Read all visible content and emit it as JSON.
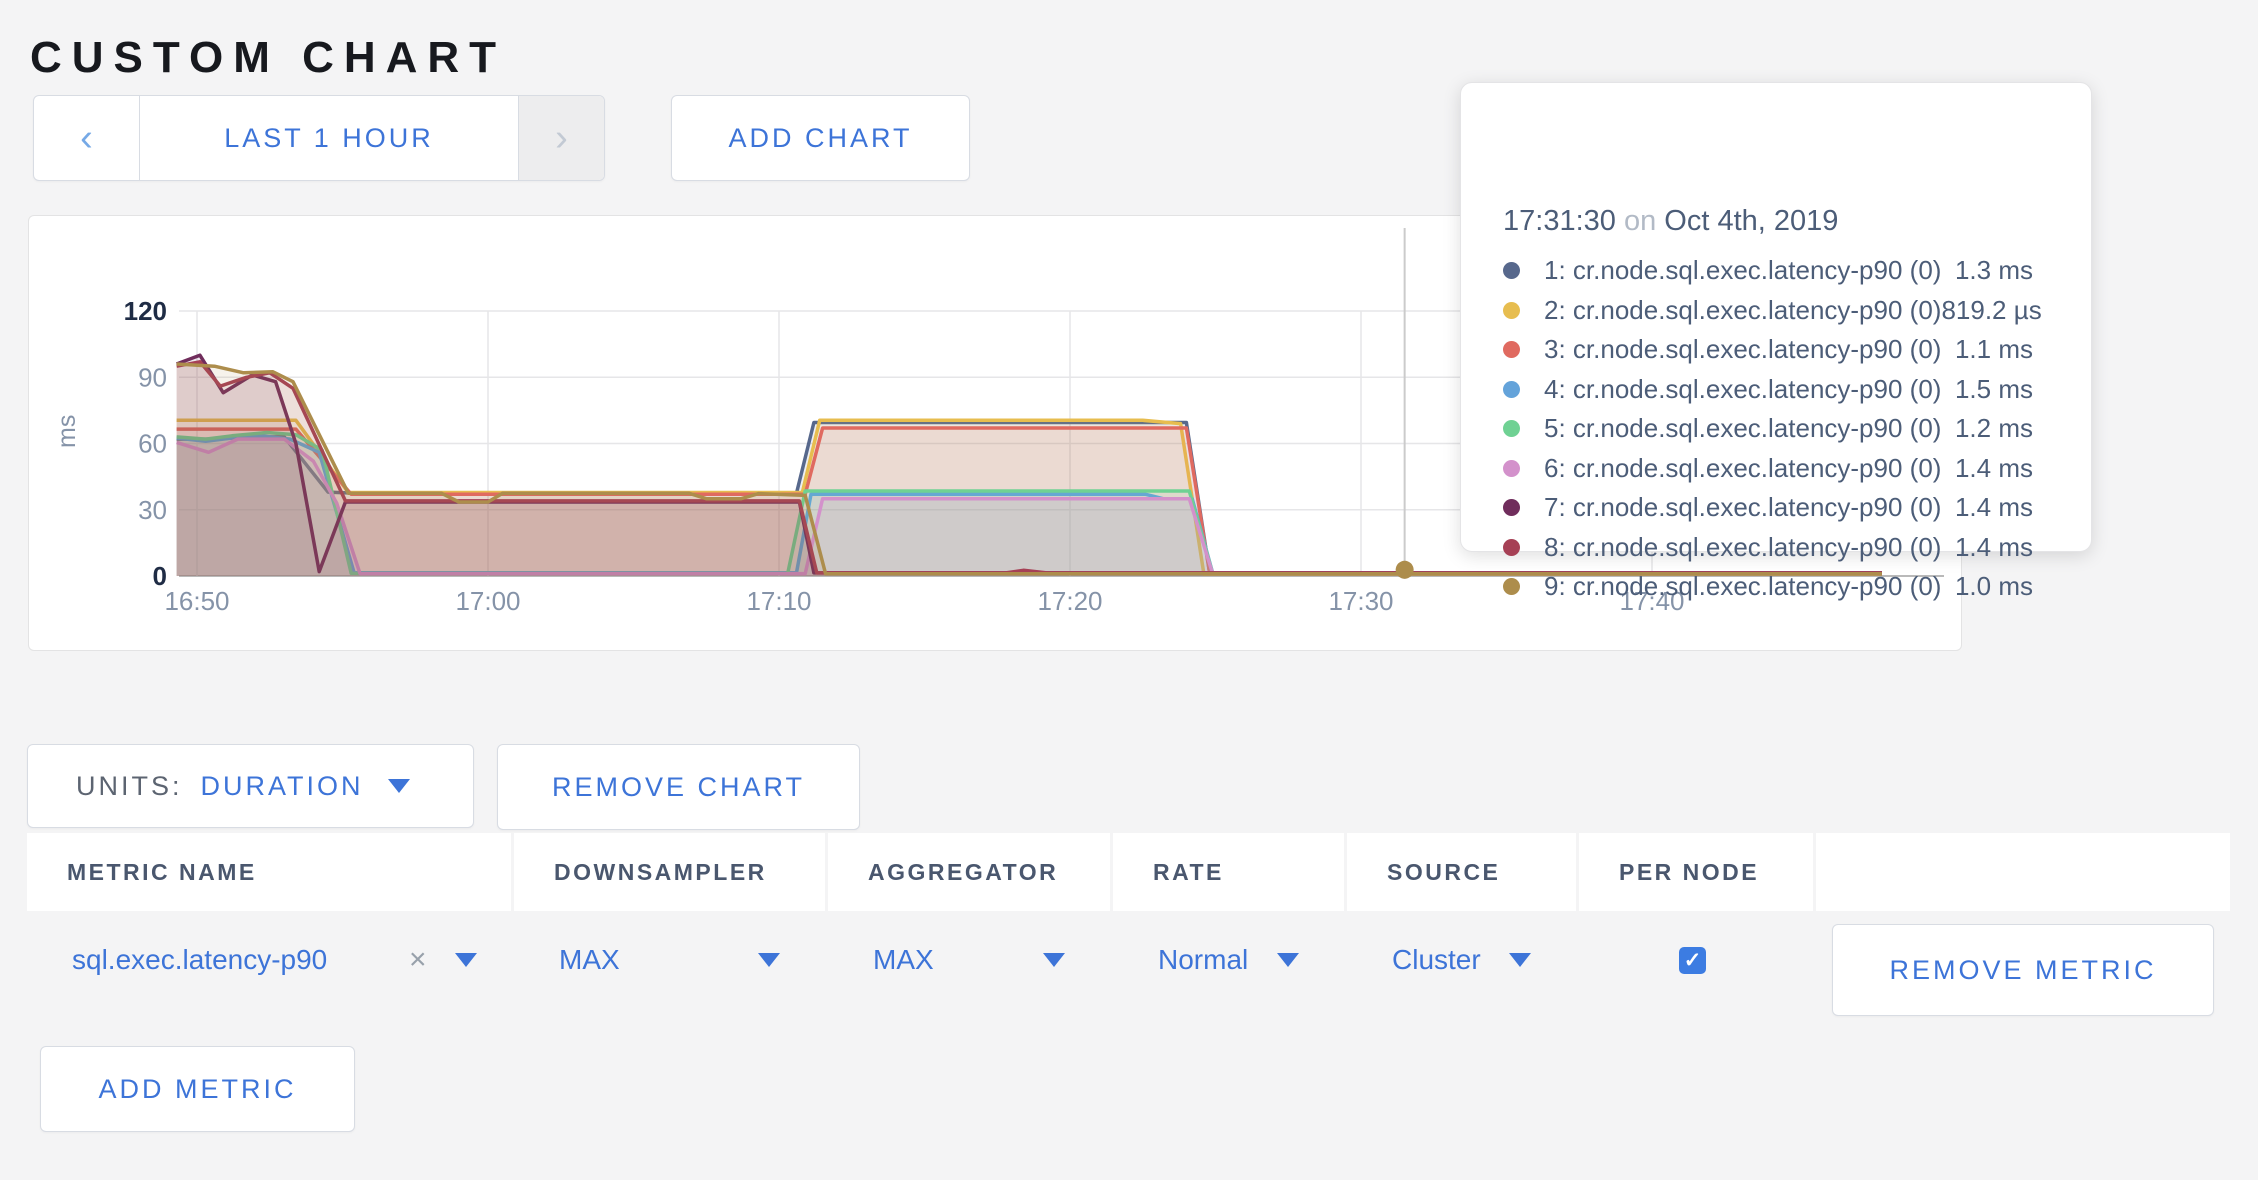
{
  "page": {
    "title": "CUSTOM CHART"
  },
  "toolbar": {
    "time_range": {
      "prev_icon": "‹",
      "label": "LAST 1 HOUR",
      "next_icon": "›"
    },
    "add_chart_label": "ADD CHART"
  },
  "tooltip": {
    "time": "17:31:30",
    "conjunction": "on",
    "date": "Oct 4th, 2019",
    "series": [
      {
        "label": "1: cr.node.sql.exec.latency-p90 (0)",
        "value": "1.3 ms"
      },
      {
        "label": "2: cr.node.sql.exec.latency-p90 (0)",
        "value": "819.2 µs"
      },
      {
        "label": "3: cr.node.sql.exec.latency-p90 (0)",
        "value": "1.1 ms"
      },
      {
        "label": "4: cr.node.sql.exec.latency-p90 (0)",
        "value": "1.5 ms"
      },
      {
        "label": "5: cr.node.sql.exec.latency-p90 (0)",
        "value": "1.2 ms"
      },
      {
        "label": "6: cr.node.sql.exec.latency-p90 (0)",
        "value": "1.4 ms"
      },
      {
        "label": "7: cr.node.sql.exec.latency-p90 (0)",
        "value": "1.4 ms"
      },
      {
        "label": "8: cr.node.sql.exec.latency-p90 (0)",
        "value": "1.4 ms"
      },
      {
        "label": "9: cr.node.sql.exec.latency-p90 (0)",
        "value": "1.0 ms"
      }
    ]
  },
  "chart_data": {
    "type": "area",
    "ylabel": "ms",
    "x_axis": {
      "ticks": [
        {
          "t": 50,
          "label": "16:50"
        },
        {
          "t": 60,
          "label": "17:00"
        },
        {
          "t": 70,
          "label": "17:10"
        },
        {
          "t": 80,
          "label": "17:20"
        },
        {
          "t": 90,
          "label": "17:30"
        },
        {
          "t": 100,
          "label": "17:40"
        }
      ]
    },
    "y_axis": {
      "ticks": [
        0,
        30,
        60,
        90,
        120
      ],
      "max": 120
    },
    "crosshair": {
      "t": 91.5,
      "value": 1.0,
      "series_index": 8
    },
    "series": [
      {
        "name": "1: cr.node.sql.exec.latency-p90 (0)",
        "color": "#57688c",
        "points": [
          [
            49.3,
            62
          ],
          [
            50.5,
            62
          ],
          [
            52,
            63
          ],
          [
            53,
            63
          ],
          [
            54.5,
            38
          ],
          [
            55.5,
            37.5
          ],
          [
            70.6,
            37.5
          ],
          [
            71.2,
            69.5
          ],
          [
            84.0,
            69.5
          ],
          [
            84.8,
            1.3
          ],
          [
            107.9,
            1.3
          ]
        ]
      },
      {
        "name": "2: cr.node.sql.exec.latency-p90 (0)",
        "color": "#e7bd4f",
        "points": [
          [
            49.3,
            70.5
          ],
          [
            53.4,
            70.5
          ],
          [
            55.2,
            37.8
          ],
          [
            70.8,
            37.8
          ],
          [
            71.4,
            70.5
          ],
          [
            82.5,
            70.5
          ],
          [
            83.8,
            69
          ],
          [
            84.6,
            0.82
          ],
          [
            107.9,
            0.82
          ]
        ]
      },
      {
        "name": "3: cr.node.sql.exec.latency-p90 (0)",
        "color": "#e06a60",
        "points": [
          [
            49.3,
            66.5
          ],
          [
            53.4,
            66.5
          ],
          [
            55.3,
            37
          ],
          [
            70.9,
            37
          ],
          [
            71.5,
            67
          ],
          [
            84.0,
            67
          ],
          [
            84.8,
            1.1
          ],
          [
            107.9,
            1.1
          ]
        ]
      },
      {
        "name": "4: cr.node.sql.exec.latency-p90 (0)",
        "color": "#64a3da",
        "points": [
          [
            49.3,
            62.5
          ],
          [
            50.3,
            61
          ],
          [
            51.2,
            62.5
          ],
          [
            52.2,
            63.5
          ],
          [
            53.2,
            62
          ],
          [
            54.2,
            56
          ],
          [
            55.4,
            1.5
          ],
          [
            70.6,
            1.5
          ],
          [
            71.1,
            37
          ],
          [
            82.6,
            37
          ],
          [
            83.2,
            35
          ],
          [
            84.2,
            35
          ],
          [
            84.9,
            1.5
          ],
          [
            107.9,
            1.5
          ]
        ]
      },
      {
        "name": "5: cr.node.sql.exec.latency-p90 (0)",
        "color": "#6fd193",
        "points": [
          [
            49.3,
            63
          ],
          [
            50.3,
            62
          ],
          [
            51.2,
            63.5
          ],
          [
            52.4,
            65
          ],
          [
            53.4,
            64
          ],
          [
            54.3,
            57
          ],
          [
            55.3,
            1.2
          ],
          [
            70.3,
            1.2
          ],
          [
            70.9,
            38.5
          ],
          [
            84.1,
            38.5
          ],
          [
            84.9,
            1.2
          ],
          [
            107.9,
            1.2
          ]
        ]
      },
      {
        "name": "6: cr.node.sql.exec.latency-p90 (0)",
        "color": "#d391cb",
        "points": [
          [
            49.3,
            60.5
          ],
          [
            50.4,
            56
          ],
          [
            51.4,
            62
          ],
          [
            53,
            62
          ],
          [
            54,
            52
          ],
          [
            54.8,
            33
          ],
          [
            55.6,
            1.1
          ],
          [
            70.9,
            1.1
          ],
          [
            71.5,
            35
          ],
          [
            84.1,
            35
          ],
          [
            84.9,
            1.2
          ],
          [
            107.9,
            1.2
          ]
        ]
      },
      {
        "name": "7: cr.node.sql.exec.latency-p90 (0)",
        "color": "#702d5c",
        "points": [
          [
            49.3,
            96
          ],
          [
            50.1,
            100
          ],
          [
            50.9,
            83
          ],
          [
            51.9,
            91
          ],
          [
            52.7,
            88
          ],
          [
            53.4,
            60
          ],
          [
            54.2,
            2
          ],
          [
            55.1,
            33.5
          ],
          [
            70.7,
            33.5
          ],
          [
            71.2,
            1.4
          ],
          [
            107.9,
            1.4
          ]
        ]
      },
      {
        "name": "8: cr.node.sql.exec.latency-p90 (0)",
        "color": "#a64055",
        "points": [
          [
            49.3,
            95
          ],
          [
            50.1,
            97
          ],
          [
            50.8,
            86
          ],
          [
            51.7,
            90
          ],
          [
            52.5,
            92
          ],
          [
            53.3,
            85
          ],
          [
            55.1,
            34
          ],
          [
            70.7,
            34
          ],
          [
            71.3,
            1.4
          ],
          [
            77.8,
            1.4
          ],
          [
            78.4,
            2.6
          ],
          [
            79.2,
            1.4
          ],
          [
            107.9,
            1.4
          ]
        ]
      },
      {
        "name": "9: cr.node.sql.exec.latency-p90 (0)",
        "color": "#ad8d4c",
        "points": [
          [
            49.3,
            96
          ],
          [
            50.6,
            95
          ],
          [
            51.6,
            92
          ],
          [
            52.6,
            92.5
          ],
          [
            53.3,
            88
          ],
          [
            55.2,
            37.5
          ],
          [
            58.4,
            37.5
          ],
          [
            59,
            33.5
          ],
          [
            60,
            33.5
          ],
          [
            60.5,
            37.5
          ],
          [
            66.9,
            37.5
          ],
          [
            67.5,
            35
          ],
          [
            68.7,
            35
          ],
          [
            69.3,
            37.3
          ],
          [
            70.9,
            36.5
          ],
          [
            71.6,
            1.0
          ],
          [
            107.9,
            1.0
          ]
        ]
      }
    ]
  },
  "controls": {
    "units_label": "UNITS:",
    "units_value": "DURATION",
    "remove_chart_label": "REMOVE CHART",
    "add_metric_label": "ADD METRIC"
  },
  "metrics_table": {
    "headers": [
      "METRIC NAME",
      "DOWNSAMPLER",
      "AGGREGATOR",
      "RATE",
      "SOURCE",
      "PER NODE"
    ],
    "rows": [
      {
        "metric_name": "sql.exec.latency-p90",
        "clear_icon": "×",
        "downsampler": "MAX",
        "aggregator": "MAX",
        "rate": "Normal",
        "source": "Cluster",
        "per_node_checked": "✓",
        "remove_label": "REMOVE METRIC"
      }
    ]
  }
}
